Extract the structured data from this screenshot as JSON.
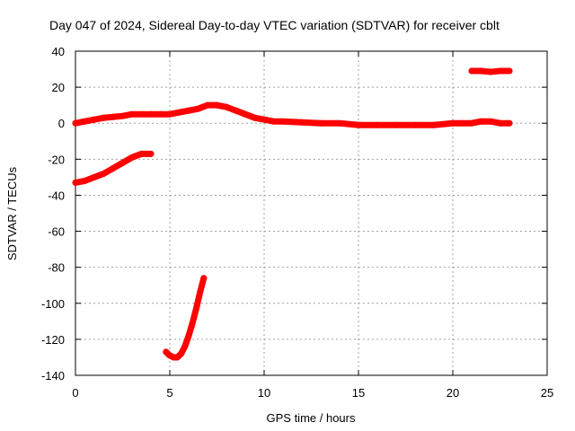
{
  "chart_data": {
    "type": "scatter",
    "title": "Day 047 of 2024, Sidereal Day-to-day VTEC variation (SDTVAR) for receiver cblt",
    "xlabel": "GPS time / hours",
    "ylabel": "SDTVAR / TECUs",
    "xlim": [
      0,
      25
    ],
    "ylim": [
      -140,
      40
    ],
    "xticks": [
      "0",
      "5",
      "10",
      "15",
      "20",
      "25"
    ],
    "yticks": [
      "40",
      "20",
      "0",
      "-20",
      "-40",
      "-60",
      "-80",
      "-100",
      "-120",
      "-140"
    ],
    "grid": true,
    "color": "#ff0000",
    "series": [
      {
        "name": "main-trace",
        "x": [
          0,
          0.5,
          1,
          1.5,
          2,
          2.5,
          3,
          3.5,
          4,
          4.5,
          5,
          5.5,
          6,
          6.5,
          7,
          7.5,
          8,
          8.5,
          9,
          9.5,
          10,
          10.5,
          11,
          12,
          13,
          14,
          15,
          16,
          17,
          18,
          19,
          20,
          20.5,
          21,
          21.5,
          22,
          22.5,
          23
        ],
        "y": [
          0,
          1,
          2,
          3,
          3.5,
          4,
          5,
          5,
          5,
          5,
          5,
          6,
          7,
          8,
          10,
          10,
          9,
          7,
          5,
          3,
          2,
          1,
          1,
          0.5,
          0,
          0,
          -1,
          -1,
          -1,
          -1,
          -1,
          0,
          0,
          0,
          1,
          1,
          0,
          0
        ]
      },
      {
        "name": "left-segment",
        "x": [
          0,
          0.5,
          1,
          1.5,
          2,
          2.5,
          3,
          3.5,
          4
        ],
        "y": [
          -33,
          -32,
          -30,
          -28,
          -25,
          -22,
          -19,
          -17,
          -17
        ]
      },
      {
        "name": "arc-segment",
        "x": [
          4.8,
          5,
          5.2,
          5.4,
          5.6,
          5.8,
          6,
          6.2,
          6.4,
          6.6,
          6.8
        ],
        "y": [
          -127,
          -129,
          -130,
          -130,
          -128,
          -124,
          -118,
          -111,
          -103,
          -94,
          -86
        ]
      },
      {
        "name": "upper-right-segment",
        "x": [
          21,
          21.5,
          22,
          22.5,
          23
        ],
        "y": [
          29,
          29,
          28.5,
          29,
          29
        ]
      }
    ]
  }
}
